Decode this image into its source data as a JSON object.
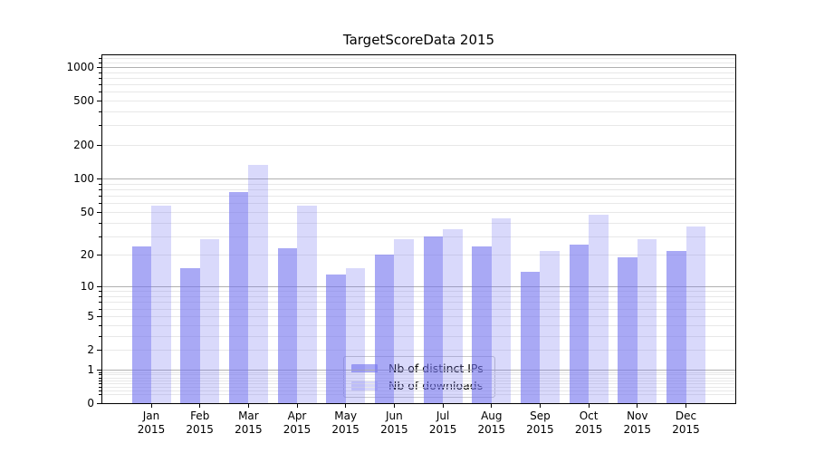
{
  "figure": {
    "title": "TargetScoreData 2015",
    "background": "#ffffff"
  },
  "chart_data": {
    "type": "bar",
    "title": "TargetScoreData 2015",
    "categories": [
      "Jan",
      "Feb",
      "Mar",
      "Apr",
      "May",
      "Jun",
      "Jul",
      "Aug",
      "Sep",
      "Oct",
      "Nov",
      "Dec"
    ],
    "category_year": "2015",
    "series": [
      {
        "name": "Nb of distinct IPs",
        "color": "rgba(116,116,239,0.62)",
        "values": [
          24,
          15,
          76,
          23,
          13,
          20,
          30,
          24,
          14,
          25,
          19,
          22
        ]
      },
      {
        "name": "Nb of downloads",
        "color": "rgba(116,116,239,0.27)",
        "values": [
          57,
          28,
          133,
          57,
          15,
          28,
          35,
          44,
          22,
          47,
          28,
          37
        ]
      }
    ],
    "yscale": "log1p",
    "ylim": [
      0,
      1250
    ],
    "ytick_labels": [
      "1000",
      "500",
      "200",
      "100",
      "50",
      "20",
      "10",
      "5",
      "2",
      "1",
      "0"
    ],
    "ytick_values": [
      1000,
      500,
      200,
      100,
      50,
      20,
      10,
      5,
      2,
      1,
      0
    ],
    "major_grid_values": [
      1,
      10,
      100,
      1000
    ],
    "grid": "both",
    "legend_position": "lower center",
    "colors": {
      "major_grid": "#b0b0b0",
      "minor_grid": "#e8e8e8",
      "spine": "#000000",
      "text": "#000000",
      "bar_base": "#7474ef"
    }
  },
  "legend": {
    "items": [
      {
        "label": "Nb of distinct IPs"
      },
      {
        "label": "Nb of downloads"
      }
    ]
  }
}
